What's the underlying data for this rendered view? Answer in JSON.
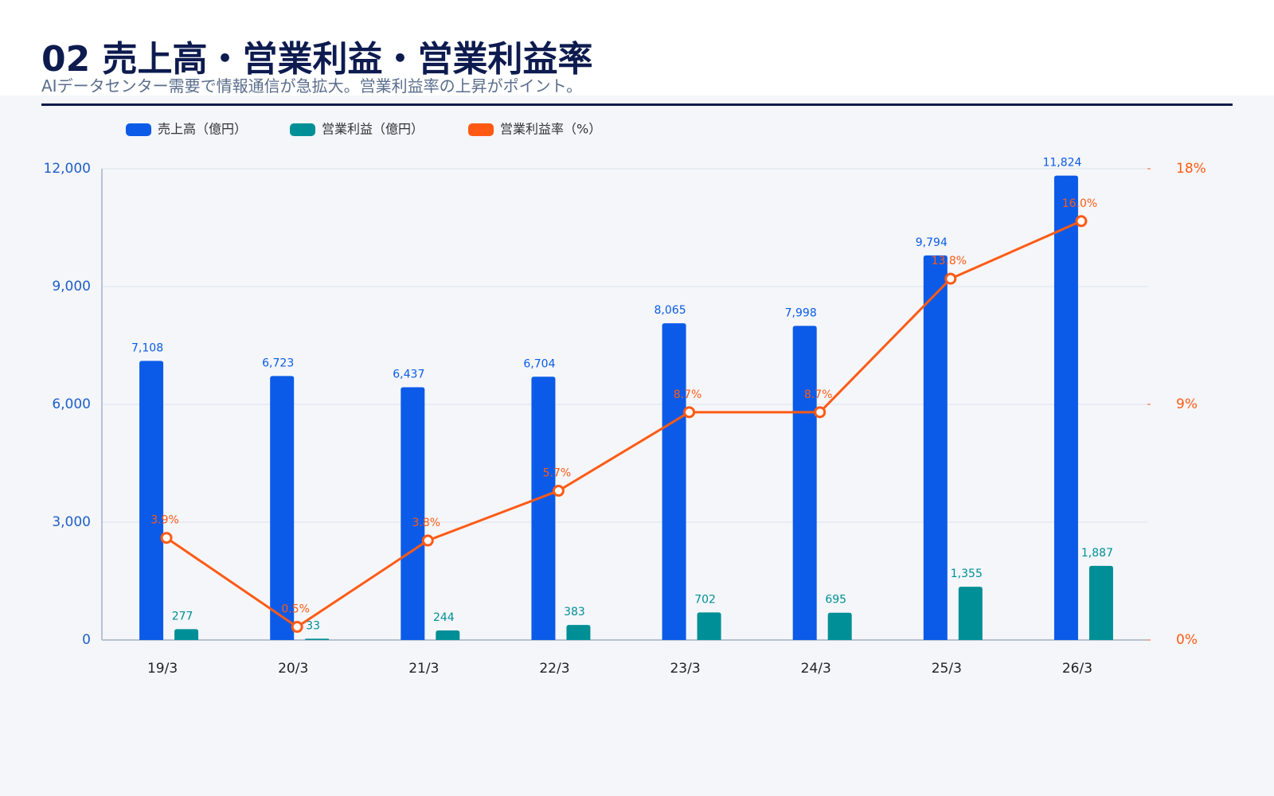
{
  "header": {
    "title": "02 売上高・営業利益・営業利益率",
    "subtitle": "AIデータセンター需要で情報通信が急拡大。営業利益率の上昇がポイント。"
  },
  "chart_data": {
    "type": "bar_line",
    "categories": [
      "19/3",
      "20/3",
      "21/3",
      "22/3",
      "23/3",
      "24/3",
      "25/3",
      "26/3"
    ],
    "series": [
      {
        "name": "売上高（億円）",
        "color": "#0b5be8",
        "type": "bar",
        "values": [
          7108,
          6723,
          6437,
          6704,
          8065,
          7998,
          9794,
          11824
        ],
        "value_labels": [
          "7,108",
          "6,723",
          "6,437",
          "6,704",
          "8,065",
          "7,998",
          "9,794",
          "11,824"
        ]
      },
      {
        "name": "営業利益（億円）",
        "color": "#008f96",
        "type": "bar",
        "values": [
          277,
          33,
          244,
          383,
          702,
          695,
          1355,
          1887
        ],
        "value_labels": [
          "277",
          "33",
          "244",
          "383",
          "702",
          "695",
          "1,355",
          "1,887"
        ]
      },
      {
        "name": "営業利益率（%）",
        "color": "#ff5a14",
        "type": "line",
        "axis": "y2",
        "values": [
          3.9,
          0.5,
          3.8,
          5.7,
          8.7,
          8.7,
          13.8,
          16.0
        ],
        "value_labels": [
          "3.9%",
          "0.5%",
          "3.8%",
          "5.7%",
          "8.7%",
          "8.7%",
          "13.8%",
          "16.0%"
        ]
      }
    ],
    "ylim": [
      0,
      12000
    ],
    "yticks": [
      0,
      {
        "value": 3000,
        "label": "3,000"
      },
      {
        "value": 6000,
        "label": "6,000"
      },
      {
        "value": 9000,
        "label": "9,000"
      },
      {
        "value": 12000,
        "label": "12,000"
      }
    ],
    "y2lim": [
      0,
      18
    ],
    "y2ticks": [
      {
        "value": 0,
        "label": "0%"
      },
      {
        "value": 9,
        "label": "9%"
      },
      {
        "value": 18,
        "label": "18%"
      }
    ],
    "grid": true,
    "legend": "top"
  }
}
